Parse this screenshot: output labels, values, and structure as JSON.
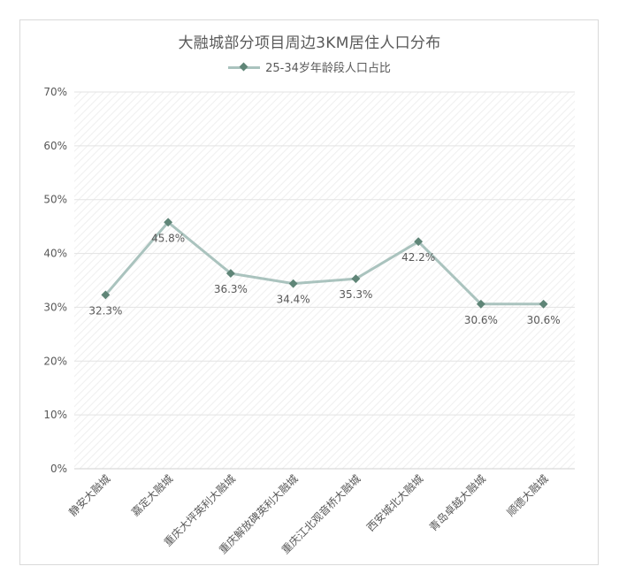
{
  "chart_data": {
    "type": "line",
    "title": "大融城部分项目周边3KM居住人口分布",
    "categories": [
      "静安大融城",
      "嘉定大融城",
      "重庆大坪英利大融城",
      "重庆解放碑英利大融城",
      "重庆江北观音桥大融城",
      "西安城北大融城",
      "青岛卓越大融城",
      "顺德大融城"
    ],
    "series": [
      {
        "name": "25-34岁年龄段人口占比",
        "values": [
          32.3,
          45.8,
          36.3,
          34.4,
          35.3,
          42.2,
          30.6,
          30.6
        ]
      }
    ],
    "data_labels": [
      "32.3%",
      "45.8%",
      "36.3%",
      "34.4%",
      "35.3%",
      "42.2%",
      "30.6%",
      "30.6%"
    ],
    "y_ticks": [
      "0%",
      "10%",
      "20%",
      "30%",
      "40%",
      "50%",
      "60%",
      "70%"
    ],
    "ylim": [
      0,
      70
    ],
    "grid": true,
    "legend_position": "top",
    "colors": {
      "line": "#aac3be",
      "marker": "#5f8577",
      "grid": "#e3e3e3",
      "text": "#595959"
    }
  }
}
